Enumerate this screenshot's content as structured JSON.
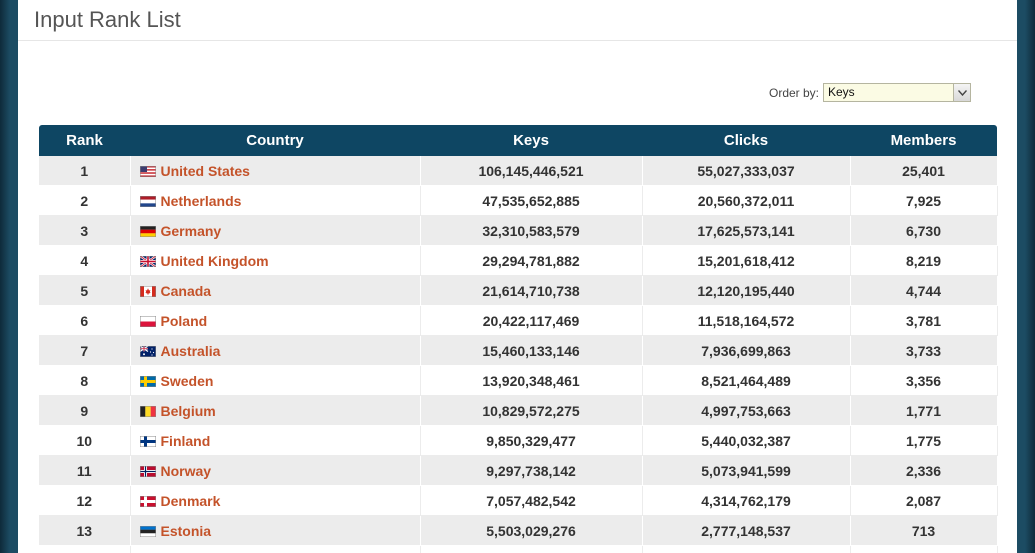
{
  "page": {
    "title": "Input Rank List"
  },
  "order_by": {
    "label": "Order by:",
    "selected": "Keys"
  },
  "table": {
    "headers": [
      "Rank",
      "Country",
      "Keys",
      "Clicks",
      "Members"
    ],
    "rows": [
      {
        "rank": "1",
        "country": "United States",
        "flag": "us-flag-icon",
        "keys": "106,145,446,521",
        "clicks": "55,027,333,037",
        "members": "25,401"
      },
      {
        "rank": "2",
        "country": "Netherlands",
        "flag": "nl-flag-icon",
        "keys": "47,535,652,885",
        "clicks": "20,560,372,011",
        "members": "7,925"
      },
      {
        "rank": "3",
        "country": "Germany",
        "flag": "de-flag-icon",
        "keys": "32,310,583,579",
        "clicks": "17,625,573,141",
        "members": "6,730"
      },
      {
        "rank": "4",
        "country": "United Kingdom",
        "flag": "gb-flag-icon",
        "keys": "29,294,781,882",
        "clicks": "15,201,618,412",
        "members": "8,219"
      },
      {
        "rank": "5",
        "country": "Canada",
        "flag": "ca-flag-icon",
        "keys": "21,614,710,738",
        "clicks": "12,120,195,440",
        "members": "4,744"
      },
      {
        "rank": "6",
        "country": "Poland",
        "flag": "pl-flag-icon",
        "keys": "20,422,117,469",
        "clicks": "11,518,164,572",
        "members": "3,781"
      },
      {
        "rank": "7",
        "country": "Australia",
        "flag": "au-flag-icon",
        "keys": "15,460,133,146",
        "clicks": "7,936,699,863",
        "members": "3,733"
      },
      {
        "rank": "8",
        "country": "Sweden",
        "flag": "se-flag-icon",
        "keys": "13,920,348,461",
        "clicks": "8,521,464,489",
        "members": "3,356"
      },
      {
        "rank": "9",
        "country": "Belgium",
        "flag": "be-flag-icon",
        "keys": "10,829,572,275",
        "clicks": "4,997,753,663",
        "members": "1,771"
      },
      {
        "rank": "10",
        "country": "Finland",
        "flag": "fi-flag-icon",
        "keys": "9,850,329,477",
        "clicks": "5,440,032,387",
        "members": "1,775"
      },
      {
        "rank": "11",
        "country": "Norway",
        "flag": "no-flag-icon",
        "keys": "9,297,738,142",
        "clicks": "5,073,941,599",
        "members": "2,336"
      },
      {
        "rank": "12",
        "country": "Denmark",
        "flag": "dk-flag-icon",
        "keys": "7,057,482,542",
        "clicks": "4,314,762,179",
        "members": "2,087"
      },
      {
        "rank": "13",
        "country": "Estonia",
        "flag": "ee-flag-icon",
        "keys": "5,503,029,276",
        "clicks": "2,777,148,537",
        "members": "713"
      },
      {
        "rank": "",
        "country": "",
        "flag": "",
        "keys": "",
        "clicks": "",
        "members": ""
      }
    ]
  },
  "colors": {
    "header_bg": "#0e4663",
    "link": "#c4532a",
    "row_alt": "#ececec"
  }
}
